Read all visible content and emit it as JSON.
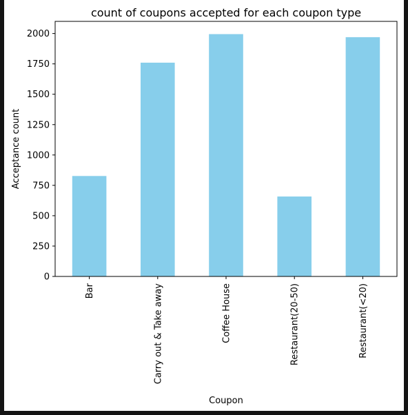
{
  "chart_data": {
    "type": "bar",
    "title": "count of coupons accepted for each coupon type",
    "xlabel": "Coupon",
    "ylabel": "Acceptance count",
    "categories": [
      "Bar",
      "Carry out & Take away",
      "Coffee House",
      "Restaurant(20-50)",
      "Restaurant(<20)"
    ],
    "values": [
      827,
      1760,
      1995,
      658,
      1970
    ],
    "ylim": [
      0,
      2100
    ],
    "yticks": [
      0,
      250,
      500,
      750,
      1000,
      1250,
      1500,
      1750,
      2000
    ],
    "grid": false,
    "bar_color": "#87ceeb"
  }
}
